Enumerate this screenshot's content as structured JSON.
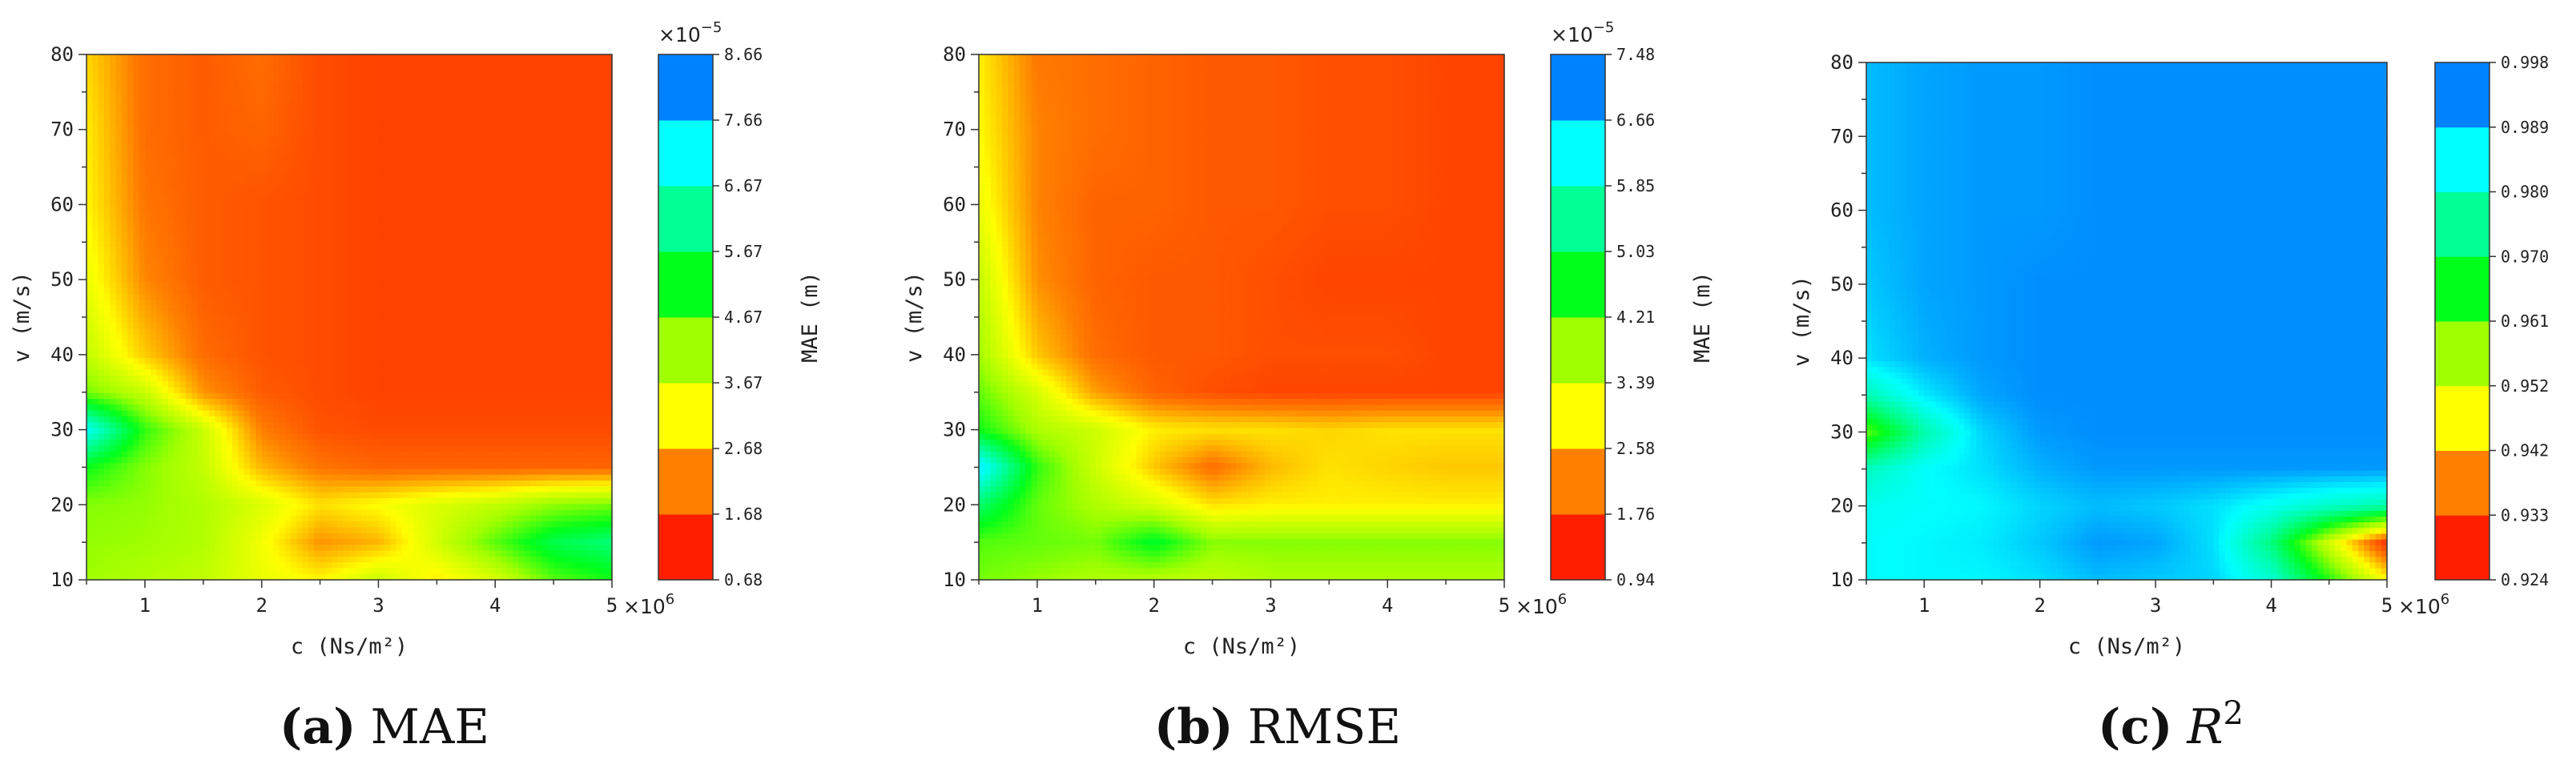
{
  "chart_data": [
    {
      "type": "heatmap",
      "caption": {
        "letter": "(a)",
        "text": "MAE"
      },
      "xlabel": "c (Ns/m²)",
      "ylabel": "v (m/s)",
      "x_multiplier": "×10",
      "x_multiplier_exp": "6",
      "xlim": [
        0.5,
        5
      ],
      "ylim": [
        10,
        80
      ],
      "xticks": [
        1,
        2,
        3,
        4,
        5
      ],
      "yticks": [
        10,
        20,
        30,
        40,
        50,
        60,
        70,
        80
      ],
      "colorbar": {
        "label": "MAE (m)",
        "multiplier": "×10",
        "multiplier_exp": "−5",
        "levels": [
          0.68,
          1.68,
          2.68,
          3.67,
          4.67,
          5.67,
          6.67,
          7.66,
          8.66
        ],
        "level_colors": [
          "#ff1f00",
          "#ff7f00",
          "#ffff00",
          "#a0ff00",
          "#00ff1a",
          "#00ff94",
          "#00ffff",
          "#0082ff"
        ],
        "low_is_red": true
      },
      "v": [
        10,
        15,
        20,
        25,
        30,
        35,
        40,
        50,
        60,
        70,
        80
      ],
      "c": [
        0.5,
        1,
        1.5,
        2,
        2.5,
        3,
        3.5,
        4,
        4.5,
        5
      ],
      "z": [
        [
          4.1,
          3.9,
          3.7,
          3.2,
          2.9,
          3.6,
          2.8,
          3.4,
          4.6,
          5.1
        ],
        [
          4.2,
          4.1,
          3.9,
          3.1,
          2.0,
          2.3,
          3.5,
          4.6,
          5.7,
          6.1
        ],
        [
          4.3,
          4.2,
          3.9,
          3.4,
          2.7,
          3.0,
          3.4,
          3.7,
          4.2,
          4.4
        ],
        [
          5.2,
          4.3,
          3.7,
          2.3,
          1.7,
          1.5,
          1.5,
          1.5,
          1.5,
          1.5
        ],
        [
          7.5,
          4.9,
          3.6,
          1.8,
          1.3,
          1.2,
          1.2,
          1.2,
          1.2,
          1.2
        ],
        [
          4.4,
          3.6,
          2.0,
          1.4,
          1.2,
          1.1,
          1.1,
          1.1,
          1.1,
          1.1
        ],
        [
          3.7,
          2.5,
          1.6,
          1.3,
          1.2,
          1.1,
          1.1,
          1.1,
          1.1,
          1.1
        ],
        [
          3.2,
          1.9,
          1.4,
          1.3,
          1.2,
          1.1,
          1.1,
          1.1,
          1.1,
          1.1
        ],
        [
          2.9,
          1.7,
          1.4,
          1.3,
          1.2,
          1.1,
          1.1,
          1.1,
          1.1,
          1.1
        ],
        [
          2.8,
          1.6,
          1.4,
          1.5,
          1.2,
          1.1,
          1.1,
          1.1,
          1.1,
          1.1
        ],
        [
          2.6,
          1.6,
          1.4,
          1.6,
          1.2,
          1.1,
          1.1,
          1.1,
          1.1,
          1.1
        ]
      ]
    },
    {
      "type": "heatmap",
      "caption": {
        "letter": "(b)",
        "text": "RMSE"
      },
      "xlabel": "c (Ns/m²)",
      "ylabel": "v (m/s)",
      "x_multiplier": "×10",
      "x_multiplier_exp": "6",
      "xlim": [
        0.5,
        5
      ],
      "ylim": [
        10,
        80
      ],
      "xticks": [
        1,
        2,
        3,
        4,
        5
      ],
      "yticks": [
        10,
        20,
        30,
        40,
        50,
        60,
        70,
        80
      ],
      "colorbar": {
        "label": "MAE (m)",
        "multiplier": "×10",
        "multiplier_exp": "−5",
        "levels": [
          0.94,
          1.76,
          2.58,
          3.39,
          4.21,
          5.03,
          5.85,
          6.66,
          7.48
        ],
        "level_colors": [
          "#ff1f00",
          "#ff7f00",
          "#ffff00",
          "#a0ff00",
          "#00ff1a",
          "#00ff94",
          "#00ffff",
          "#0082ff"
        ],
        "low_is_red": true
      },
      "v": [
        10,
        15,
        20,
        25,
        30,
        35,
        40,
        50,
        60,
        70,
        80
      ],
      "c": [
        0.5,
        1,
        1.5,
        2,
        2.5,
        3,
        3.5,
        4,
        4.5,
        5
      ],
      "z": [
        [
          4.0,
          3.8,
          3.6,
          3.5,
          3.4,
          3.6,
          3.6,
          3.6,
          3.6,
          3.6
        ],
        [
          4.2,
          4.1,
          4.0,
          4.8,
          3.9,
          3.9,
          3.9,
          3.9,
          3.9,
          3.9
        ],
        [
          5.3,
          4.1,
          3.6,
          3.2,
          2.6,
          2.7,
          2.7,
          2.7,
          2.7,
          2.7
        ],
        [
          6.8,
          4.4,
          3.3,
          2.4,
          1.7,
          2.3,
          2.6,
          2.5,
          2.4,
          2.4
        ],
        [
          4.6,
          3.6,
          3.3,
          2.7,
          2.6,
          2.6,
          2.5,
          2.6,
          2.6,
          2.6
        ],
        [
          4.1,
          3.2,
          2.1,
          1.6,
          1.4,
          1.3,
          1.3,
          1.3,
          1.3,
          1.3
        ],
        [
          3.7,
          2.4,
          1.7,
          1.5,
          1.5,
          1.4,
          1.4,
          1.4,
          1.3,
          1.3
        ],
        [
          3.4,
          2.0,
          1.6,
          1.5,
          1.5,
          1.4,
          1.3,
          1.3,
          1.3,
          1.3
        ],
        [
          3.0,
          1.9,
          1.6,
          1.6,
          1.5,
          1.5,
          1.4,
          1.4,
          1.3,
          1.3
        ],
        [
          2.8,
          1.9,
          1.7,
          1.6,
          1.5,
          1.5,
          1.4,
          1.4,
          1.3,
          1.3
        ],
        [
          2.7,
          1.8,
          1.7,
          1.6,
          1.5,
          1.5,
          1.4,
          1.4,
          1.3,
          1.3
        ]
      ]
    },
    {
      "type": "heatmap",
      "caption": {
        "letter": "(c)",
        "text": "R",
        "text_exp": "2"
      },
      "xlabel": "c (Ns/m²)",
      "ylabel": "v (m/s)",
      "x_multiplier": "×10",
      "x_multiplier_exp": "6",
      "xlim": [
        0.5,
        5
      ],
      "ylim": [
        10,
        80
      ],
      "xticks": [
        1,
        2,
        3,
        4,
        5
      ],
      "yticks": [
        10,
        20,
        30,
        40,
        50,
        60,
        70,
        80
      ],
      "colorbar": {
        "label": "R²",
        "multiplier": "",
        "multiplier_exp": "",
        "levels": [
          0.924,
          0.933,
          0.942,
          0.952,
          0.961,
          0.97,
          0.98,
          0.989,
          0.998
        ],
        "level_colors": [
          "#ff1f00",
          "#ff7f00",
          "#ffff00",
          "#a0ff00",
          "#00ff1a",
          "#00ff94",
          "#00ffff",
          "#0082ff"
        ],
        "low_is_red": true
      },
      "v": [
        10,
        15,
        20,
        25,
        30,
        35,
        40,
        50,
        60,
        70,
        80
      ],
      "c": [
        0.5,
        1,
        1.5,
        2,
        2.5,
        3,
        3.5,
        4,
        4.5,
        5
      ],
      "z": [
        [
          0.987,
          0.988,
          0.988,
          0.99,
          0.993,
          0.992,
          0.991,
          0.983,
          0.964,
          0.945
        ],
        [
          0.987,
          0.988,
          0.989,
          0.992,
          0.996,
          0.995,
          0.99,
          0.975,
          0.95,
          0.926
        ],
        [
          0.986,
          0.987,
          0.988,
          0.991,
          0.993,
          0.992,
          0.99,
          0.986,
          0.982,
          0.979
        ],
        [
          0.981,
          0.987,
          0.99,
          0.994,
          0.996,
          0.996,
          0.996,
          0.996,
          0.996,
          0.996
        ],
        [
          0.96,
          0.979,
          0.991,
          0.996,
          0.997,
          0.997,
          0.997,
          0.997,
          0.997,
          0.997
        ],
        [
          0.98,
          0.989,
          0.995,
          0.997,
          0.997,
          0.997,
          0.997,
          0.997,
          0.997,
          0.997
        ],
        [
          0.99,
          0.994,
          0.996,
          0.997,
          0.997,
          0.997,
          0.997,
          0.997,
          0.997,
          0.997
        ],
        [
          0.992,
          0.995,
          0.996,
          0.997,
          0.997,
          0.997,
          0.997,
          0.997,
          0.997,
          0.997
        ],
        [
          0.993,
          0.995,
          0.996,
          0.996,
          0.997,
          0.997,
          0.997,
          0.997,
          0.997,
          0.997
        ],
        [
          0.993,
          0.995,
          0.996,
          0.996,
          0.997,
          0.997,
          0.997,
          0.997,
          0.997,
          0.997
        ],
        [
          0.993,
          0.995,
          0.996,
          0.996,
          0.997,
          0.997,
          0.997,
          0.997,
          0.997,
          0.997
        ]
      ]
    }
  ]
}
